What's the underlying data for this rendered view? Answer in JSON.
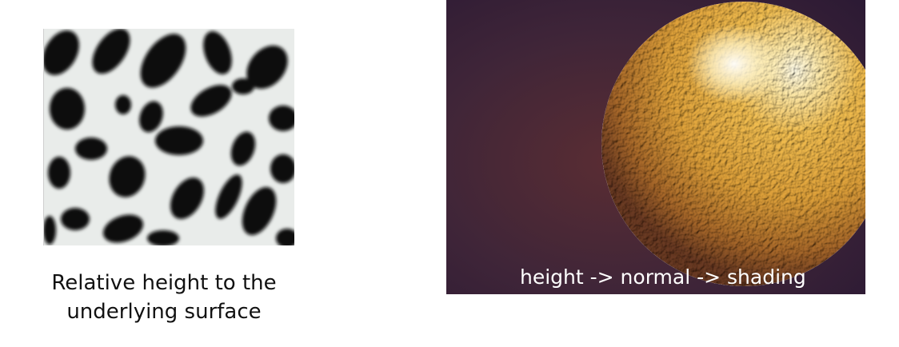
{
  "figures": {
    "bump_map": {
      "caption_line1": "Relative height to the",
      "caption_line2": "underlying surface"
    },
    "shaded_sphere": {
      "caption": "height -> normal -> shading"
    }
  },
  "colors": {
    "sphere_base": "#e6a93a",
    "sphere_highlight": "#fff6cf",
    "background_purple": "#3f2538",
    "bump_dark": "#0b0b0b",
    "bump_light": "#e9ecea"
  }
}
